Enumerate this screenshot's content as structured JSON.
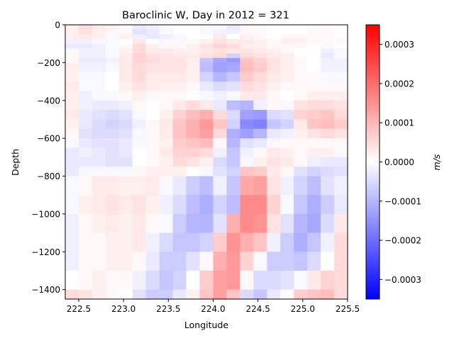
{
  "chart_data": {
    "type": "heatmap",
    "title": "Baroclinic W, Day in 2012 = 321",
    "xlabel": "Longitude",
    "ylabel": "Depth",
    "xlim": [
      222.35,
      225.5
    ],
    "ylim": [
      -1450,
      0
    ],
    "x_ticks": [
      222.5,
      223.0,
      223.5,
      224.0,
      224.5,
      225.0,
      225.5
    ],
    "x_tick_labels": [
      "222.5",
      "223.0",
      "223.5",
      "224.0",
      "224.5",
      "225.0",
      "225.5"
    ],
    "y_ticks": [
      0,
      -200,
      -400,
      -600,
      -800,
      -1000,
      -1200,
      -1400
    ],
    "y_tick_labels": [
      "0",
      "−200",
      "−400",
      "−600",
      "−800",
      "−1000",
      "−1200",
      "−1400"
    ],
    "colorbar": {
      "label": "m/s",
      "colormap": "bwr",
      "vmin": -0.00035,
      "vmax": 0.00035,
      "ticks": [
        0.0003,
        0.0002,
        0.0001,
        0.0,
        -0.0001,
        -0.0002,
        -0.0003
      ],
      "tick_labels": [
        "0.0003",
        "0.0002",
        "0.0001",
        "0.0000",
        "−0.0001",
        "−0.0002",
        "−0.0003"
      ]
    },
    "x_edges": [
      222.35,
      222.5,
      222.65,
      222.8,
      222.95,
      223.1,
      223.25,
      223.4,
      223.55,
      223.7,
      223.85,
      224.0,
      224.15,
      224.3,
      224.45,
      224.6,
      224.75,
      224.9,
      225.05,
      225.2,
      225.35,
      225.5
    ],
    "depth_edges": [
      0,
      -25,
      -50,
      -75,
      -100,
      -125,
      -150,
      -175,
      -200,
      -250,
      -300,
      -350,
      -400,
      -450,
      -500,
      -550,
      -600,
      -650,
      -700,
      -750,
      -800,
      -900,
      -1000,
      -1100,
      -1200,
      -1300,
      -1400,
      -1450
    ],
    "values_1e5": [
      [
        2,
        5,
        3,
        2,
        1,
        -3,
        -2,
        -1,
        0,
        0,
        -1,
        -1,
        -3,
        1,
        1,
        0,
        0,
        0,
        1,
        1,
        0
      ],
      [
        2,
        4,
        2,
        1,
        1,
        -4,
        -3,
        -1,
        0,
        0,
        -1,
        -2,
        -2,
        1,
        1,
        0,
        0,
        0,
        1,
        1,
        0
      ],
      [
        2,
        3,
        2,
        1,
        2,
        -2,
        -3,
        -2,
        -1,
        0,
        0,
        3,
        0,
        2,
        1,
        0,
        1,
        1,
        1,
        1,
        0
      ],
      [
        -2,
        -2,
        -1,
        -1,
        0,
        3,
        0,
        -1,
        -1,
        1,
        2,
        4,
        3,
        3,
        2,
        1,
        2,
        2,
        1,
        1,
        1
      ],
      [
        -3,
        -3,
        -2,
        -1,
        1,
        5,
        2,
        1,
        1,
        2,
        4,
        6,
        5,
        2,
        2,
        1,
        1,
        1,
        0,
        -1,
        0
      ],
      [
        1,
        -2,
        -2,
        -1,
        2,
        5,
        3,
        3,
        2,
        2,
        3,
        4,
        3,
        4,
        3,
        2,
        1,
        0,
        0,
        -2,
        -1
      ],
      [
        1,
        -2,
        -2,
        -1,
        3,
        6,
        4,
        4,
        3,
        3,
        4,
        5,
        -6,
        5,
        4,
        3,
        2,
        0,
        0,
        -3,
        -1
      ],
      [
        1,
        -3,
        -3,
        -2,
        3,
        6,
        5,
        4,
        4,
        2,
        -8,
        -12,
        -14,
        8,
        6,
        4,
        2,
        1,
        0,
        -2,
        -2
      ],
      [
        2,
        -2,
        -2,
        -1,
        3,
        5,
        4,
        4,
        4,
        2,
        -9,
        -13,
        -12,
        9,
        7,
        4,
        2,
        1,
        0,
        -2,
        -2
      ],
      [
        2,
        -1,
        -1,
        0,
        3,
        5,
        3,
        3,
        3,
        2,
        -6,
        -10,
        -8,
        7,
        5,
        3,
        2,
        1,
        1,
        -1,
        -1
      ],
      [
        3,
        -1,
        -1,
        0,
        2,
        4,
        3,
        2,
        2,
        1,
        -3,
        -5,
        -4,
        5,
        4,
        2,
        1,
        1,
        1,
        1,
        1
      ],
      [
        2,
        -2,
        -1,
        -1,
        1,
        2,
        1,
        1,
        1,
        0,
        -1,
        -2,
        -1,
        3,
        3,
        1,
        0,
        1,
        2,
        2,
        2
      ],
      [
        2,
        -2,
        -3,
        -3,
        -2,
        1,
        0,
        1,
        3,
        5,
        3,
        -3,
        -9,
        -10,
        -2,
        1,
        -1,
        4,
        5,
        5,
        4
      ],
      [
        3,
        -3,
        -4,
        -5,
        -4,
        -1,
        0,
        2,
        6,
        9,
        11,
        5,
        -5,
        -13,
        -14,
        -5,
        -4,
        6,
        7,
        8,
        5
      ],
      [
        2,
        -3,
        -5,
        -6,
        -5,
        -2,
        1,
        3,
        8,
        11,
        14,
        8,
        -6,
        -16,
        -17,
        -8,
        -6,
        3,
        8,
        9,
        7
      ],
      [
        1,
        -4,
        -5,
        -5,
        -4,
        -1,
        1,
        3,
        8,
        11,
        13,
        5,
        -11,
        -13,
        -10,
        -3,
        -2,
        2,
        4,
        5,
        4
      ],
      [
        -1,
        -3,
        -4,
        -4,
        -3,
        -1,
        1,
        2,
        7,
        8,
        9,
        1,
        -10,
        -4,
        -3,
        -1,
        1,
        1,
        1,
        1,
        1
      ],
      [
        -3,
        -2,
        -3,
        -4,
        -3,
        0,
        1,
        3,
        6,
        6,
        5,
        -2,
        -8,
        -2,
        1,
        3,
        2,
        1,
        2,
        2,
        1
      ],
      [
        -3,
        -3,
        -3,
        -4,
        -4,
        0,
        1,
        2,
        5,
        4,
        2,
        -5,
        -8,
        -1,
        2,
        4,
        3,
        1,
        -2,
        -3,
        -3
      ],
      [
        -3,
        -1,
        -1,
        -1,
        -1,
        1,
        2,
        2,
        2,
        0,
        -1,
        -4,
        -6,
        8,
        7,
        3,
        1,
        -4,
        -6,
        -5,
        -4
      ],
      [
        -1,
        1,
        3,
        3,
        2,
        2,
        3,
        -1,
        -3,
        -7,
        -9,
        -2,
        -8,
        12,
        13,
        4,
        -2,
        -6,
        -9,
        -4,
        -2
      ],
      [
        -1,
        2,
        3,
        4,
        3,
        4,
        2,
        -2,
        -5,
        -9,
        -11,
        -6,
        -9,
        16,
        16,
        6,
        -1,
        -8,
        -11,
        -7,
        -3
      ],
      [
        -2,
        1,
        2,
        3,
        2,
        3,
        1,
        -1,
        -7,
        -10,
        -10,
        -4,
        11,
        16,
        15,
        4,
        -4,
        -10,
        -12,
        -5,
        3
      ],
      [
        -2,
        1,
        1,
        2,
        2,
        3,
        -2,
        -5,
        -8,
        -8,
        -6,
        7,
        15,
        11,
        8,
        -2,
        -7,
        -11,
        -8,
        -2,
        5
      ],
      [
        -2,
        1,
        1,
        2,
        2,
        1,
        -3,
        -7,
        -7,
        -4,
        1,
        11,
        14,
        6,
        -1,
        -7,
        -7,
        -8,
        -5,
        0,
        5
      ],
      [
        0,
        1,
        2,
        1,
        1,
        -2,
        -5,
        -8,
        -6,
        0,
        7,
        13,
        14,
        1,
        -5,
        -5,
        -4,
        -1,
        3,
        6,
        5
      ],
      [
        5,
        4,
        2,
        1,
        0,
        -4,
        -7,
        -7,
        -3,
        2,
        8,
        13,
        8,
        -5,
        -8,
        -3,
        0,
        7,
        8,
        9,
        5
      ]
    ]
  }
}
